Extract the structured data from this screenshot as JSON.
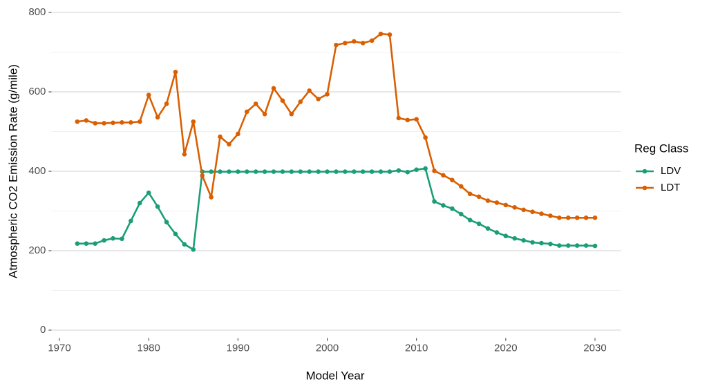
{
  "chart_data": {
    "type": "line",
    "xlabel": "Model Year",
    "ylabel": "Atmospheric CO2 Emission Rate (g/mile)",
    "legend_title": "Reg Class",
    "legend": "right",
    "grid": true,
    "x": [
      1972,
      1973,
      1974,
      1975,
      1976,
      1977,
      1978,
      1979,
      1980,
      1981,
      1982,
      1983,
      1984,
      1985,
      1986,
      1987,
      1988,
      1989,
      1990,
      1991,
      1992,
      1993,
      1994,
      1995,
      1996,
      1997,
      1998,
      1999,
      2000,
      2001,
      2002,
      2003,
      2004,
      2005,
      2006,
      2007,
      2008,
      2009,
      2010,
      2011,
      2012,
      2013,
      2014,
      2015,
      2016,
      2017,
      2018,
      2019,
      2020,
      2021,
      2022,
      2023,
      2024,
      2025,
      2026,
      2027,
      2028,
      2029,
      2030
    ],
    "series": [
      {
        "name": "LDV",
        "color": "#1b9e77",
        "values": [
          218,
          218,
          218,
          226,
          231,
          230,
          275,
          320,
          346,
          311,
          272,
          242,
          216,
          203,
          399,
          399,
          399,
          399,
          399,
          399,
          399,
          399,
          399,
          399,
          399,
          399,
          399,
          399,
          399,
          399,
          399,
          399,
          399,
          399,
          399,
          399,
          402,
          398,
          404,
          407,
          324,
          314,
          306,
          292,
          277,
          268,
          256,
          246,
          237,
          231,
          226,
          221,
          219,
          217,
          213,
          213,
          213,
          213,
          212
        ]
      },
      {
        "name": "LDT",
        "color": "#d95f02",
        "values": [
          525,
          528,
          521,
          521,
          522,
          523,
          523,
          525,
          592,
          536,
          570,
          650,
          443,
          525,
          389,
          335,
          487,
          468,
          494,
          550,
          570,
          544,
          609,
          578,
          544,
          575,
          603,
          582,
          594,
          718,
          723,
          727,
          723,
          729,
          746,
          744,
          534,
          529,
          531,
          485,
          401,
          390,
          378,
          362,
          343,
          336,
          326,
          321,
          315,
          309,
          303,
          298,
          293,
          288,
          283,
          283,
          283,
          283,
          283
        ]
      }
    ],
    "xlim": [
      1969.1,
      2032.9
    ],
    "xticks": [
      1970,
      1980,
      1990,
      2000,
      2010,
      2020,
      2030
    ],
    "ylim": [
      -20,
      820
    ],
    "yticks": [
      0,
      200,
      400,
      600,
      800
    ],
    "yminorticks": [
      100,
      300,
      500,
      700
    ]
  }
}
